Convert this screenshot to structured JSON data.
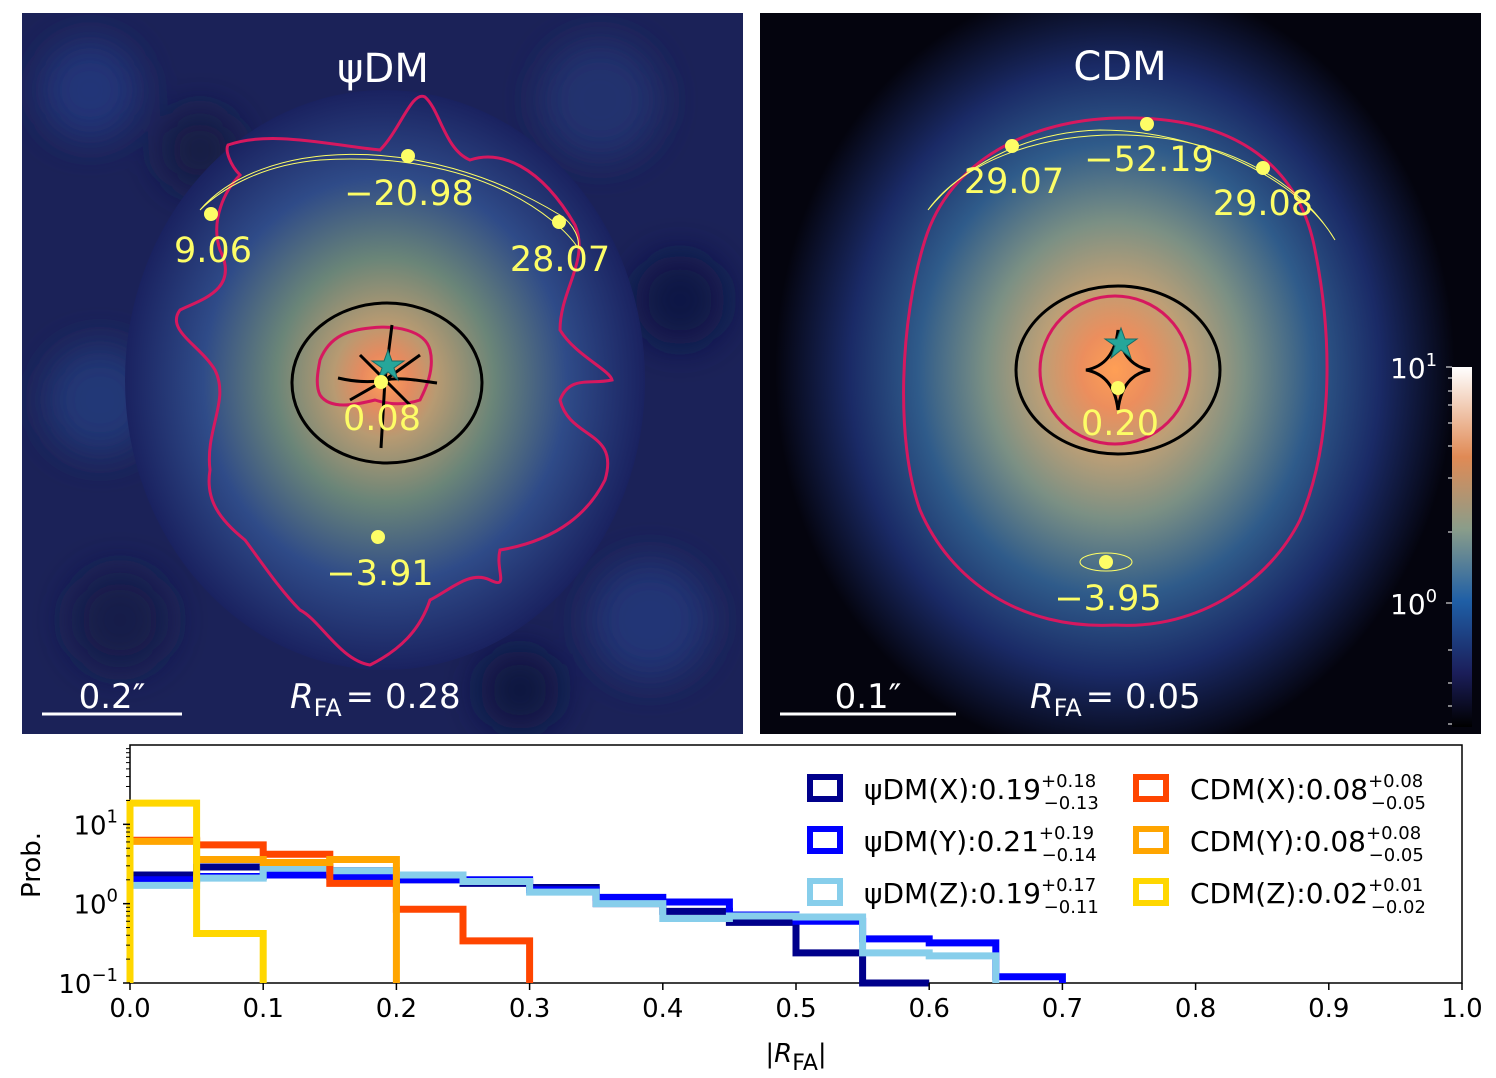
{
  "panels": [
    {
      "title": "ψDM",
      "scale_bar_label": "0.2″",
      "rfa_label": "R",
      "rfa_sub": "FA",
      "rfa_value": "= 0.28",
      "image_labels": [
        "9.06",
        "−20.98",
        "28.07",
        "0.08",
        "−3.91"
      ]
    },
    {
      "title": "CDM",
      "scale_bar_label": "0.1″",
      "rfa_label": "R",
      "rfa_sub": "FA",
      "rfa_value": "= 0.05",
      "image_labels": [
        "29.07",
        "−52.19",
        "29.08",
        "0.20",
        "−3.95"
      ]
    }
  ],
  "colorbar": {
    "labels": [
      "10",
      "10"
    ],
    "exponents": [
      "1",
      "0"
    ]
  },
  "chart_data": {
    "type": "histogram",
    "ylabel": "Prob.",
    "xlabel": "|R",
    "xlabel_sub": "FA",
    "xlabel_close": "|",
    "xlim": [
      0,
      1
    ],
    "ylim_log": [
      -1,
      2
    ],
    "xticks": [
      "0.0",
      "0.1",
      "0.2",
      "0.3",
      "0.4",
      "0.5",
      "0.6",
      "0.7",
      "0.8",
      "0.9",
      "1.0"
    ],
    "yticks": [
      {
        "base": "10",
        "exp": "1"
      },
      {
        "base": "10",
        "exp": "0"
      },
      {
        "base": "10",
        "exp": "−1"
      }
    ],
    "series": [
      {
        "name": "ψDM(X)",
        "value": ":0.19",
        "up": "+0.18",
        "down": "−0.13",
        "color": "#00008b",
        "edges": [
          0,
          0.05,
          0.1,
          0.15,
          0.2,
          0.25,
          0.3,
          0.35,
          0.4,
          0.45,
          0.5,
          0.55,
          0.6
        ],
        "values": [
          2.3,
          2.9,
          2.8,
          2.6,
          2.0,
          1.8,
          1.6,
          1.0,
          0.8,
          0.58,
          0.24,
          0.1
        ]
      },
      {
        "name": "ψDM(Y)",
        "value": ":0.21",
        "up": "+0.19",
        "down": "−0.14",
        "color": "#0000ff",
        "edges": [
          0,
          0.05,
          0.1,
          0.15,
          0.2,
          0.25,
          0.3,
          0.35,
          0.4,
          0.45,
          0.5,
          0.55,
          0.6,
          0.65,
          0.7
        ],
        "values": [
          2.0,
          2.2,
          2.3,
          2.2,
          2.0,
          2.0,
          1.5,
          1.2,
          1.05,
          0.72,
          0.6,
          0.36,
          0.32,
          0.12
        ]
      },
      {
        "name": "ψDM(Z)",
        "value": ":0.19",
        "up": "+0.17",
        "down": "−0.11",
        "color": "#87ceeb",
        "edges": [
          0,
          0.05,
          0.1,
          0.15,
          0.2,
          0.25,
          0.3,
          0.35,
          0.4,
          0.45,
          0.5,
          0.55,
          0.6,
          0.65
        ],
        "values": [
          1.7,
          2.1,
          2.8,
          2.6,
          2.3,
          1.9,
          1.4,
          1.0,
          0.65,
          0.7,
          0.68,
          0.24,
          0.22
        ]
      },
      {
        "name": "CDM(X)",
        "value": ":0.08",
        "up": "+0.08",
        "down": "−0.05",
        "color": "#ff4500",
        "edges": [
          0,
          0.05,
          0.1,
          0.15,
          0.2,
          0.25,
          0.3
        ],
        "values": [
          6.3,
          5.5,
          4.2,
          1.8,
          0.85,
          0.34
        ]
      },
      {
        "name": "CDM(Y)",
        "value": ":0.08",
        "up": "+0.08",
        "down": "−0.05",
        "color": "#ffa500",
        "edges": [
          0,
          0.05,
          0.1,
          0.15,
          0.2
        ],
        "values": [
          6.1,
          3.6,
          3.3,
          3.6
        ]
      },
      {
        "name": "CDM(Z)",
        "value": ":0.02",
        "up": "+0.01",
        "down": "−0.02",
        "color": "#ffd700",
        "edges": [
          0,
          0.05,
          0.1
        ],
        "values": [
          18.5,
          0.42
        ]
      }
    ]
  }
}
